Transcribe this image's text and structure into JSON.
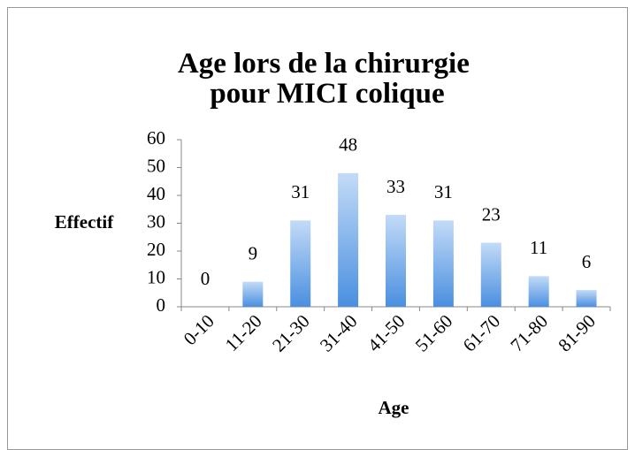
{
  "chart_data": {
    "type": "bar",
    "title": "Age lors de la chirurgie pour MICI colique",
    "x_label": "Age",
    "y_label": "Effectif",
    "categories": [
      "0-10",
      "11-20",
      "21-30",
      "31-40",
      "41-50",
      "51-60",
      "61-70",
      "71-80",
      "81-90"
    ],
    "values": [
      0,
      9,
      31,
      48,
      33,
      31,
      23,
      11,
      6
    ],
    "color": "#4a8fe0",
    "ylim": [
      0,
      60
    ],
    "yticks": [
      0,
      10,
      20,
      30,
      40,
      50,
      60
    ],
    "grid": false
  }
}
